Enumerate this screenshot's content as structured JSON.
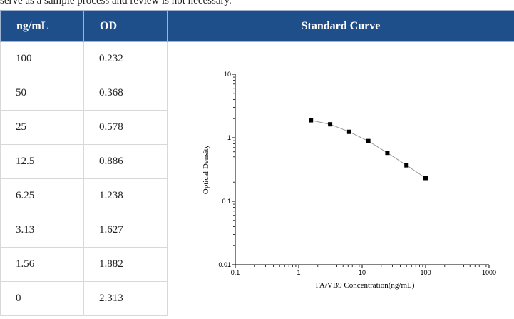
{
  "top_text": "serve as a sample process and review is not necessary.",
  "table": {
    "headers": [
      "ng/mL",
      "OD",
      "Standard Curve"
    ],
    "rows": [
      [
        "100",
        "0.232"
      ],
      [
        "50",
        "0.368"
      ],
      [
        "25",
        "0.578"
      ],
      [
        "12.5",
        "0.886"
      ],
      [
        "6.25",
        "1.238"
      ],
      [
        "3.13",
        "1.627"
      ],
      [
        "1.56",
        "1.882"
      ],
      [
        "0",
        "2.313"
      ]
    ]
  },
  "chart_data": {
    "type": "line",
    "title": "",
    "xlabel": "FA/VB9 Concentration(ng/mL)",
    "ylabel": "Optical Density",
    "x_scale": "log",
    "y_scale": "log",
    "xlim": [
      0.1,
      1000
    ],
    "ylim": [
      0.01,
      10
    ],
    "x_ticks": [
      "0.1",
      "1",
      "10",
      "100",
      "1000"
    ],
    "y_ticks": [
      "0.01",
      "0.1",
      "1",
      "10"
    ],
    "grid": false,
    "series": [
      {
        "x": [
          1.56,
          3.13,
          6.25,
          12.5,
          25,
          50,
          100
        ],
        "y": [
          1.882,
          1.627,
          1.238,
          0.886,
          0.578,
          0.368,
          0.232
        ]
      }
    ],
    "colors": {
      "line": "#999999",
      "marker": "#000000",
      "axis": "#000000"
    }
  }
}
